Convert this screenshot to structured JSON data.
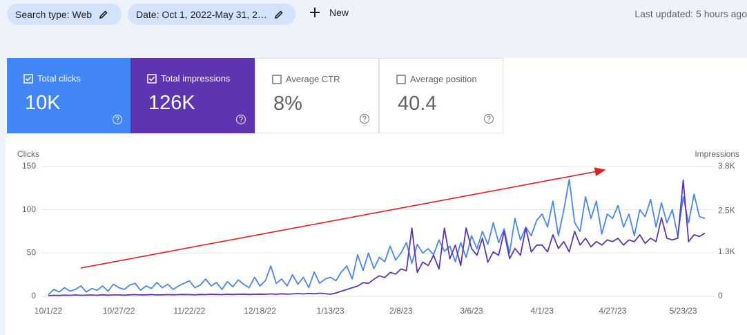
{
  "toolbar": {
    "search_type": "Search type: Web",
    "date": "Date: Oct 1, 2022-May 31, 2…",
    "new": "New",
    "last_updated": "Last updated: 5 hours ago"
  },
  "cards": [
    {
      "label": "Total clicks",
      "value": "10K"
    },
    {
      "label": "Total impressions",
      "value": "126K"
    },
    {
      "label": "Average CTR",
      "value": "8%"
    },
    {
      "label": "Average position",
      "value": "40.4"
    }
  ],
  "chart_data": {
    "type": "line",
    "y_label": "Clicks",
    "y2_label": "Impressions",
    "categories": [
      "10/1/22",
      null,
      null,
      null,
      null,
      null,
      null,
      null,
      null,
      null,
      null,
      null,
      null,
      "10/27/22",
      null,
      null,
      null,
      null,
      null,
      null,
      null,
      null,
      null,
      null,
      null,
      null,
      "11/22/22",
      null,
      null,
      null,
      null,
      null,
      null,
      null,
      null,
      null,
      null,
      null,
      null,
      "12/18/22",
      null,
      null,
      null,
      null,
      null,
      null,
      null,
      null,
      null,
      null,
      null,
      null,
      "1/13/23",
      null,
      null,
      null,
      null,
      null,
      null,
      null,
      null,
      null,
      null,
      null,
      null,
      "2/8/23",
      null,
      null,
      null,
      null,
      null,
      null,
      null,
      null,
      null,
      null,
      null,
      null,
      "3/6/23",
      null,
      null,
      null,
      null,
      null,
      null,
      null,
      null,
      null,
      null,
      null,
      null,
      "4/1/23",
      null,
      null,
      null,
      null,
      null,
      null,
      null,
      null,
      null,
      null,
      null,
      null,
      "4/27/23",
      null,
      null,
      null,
      null,
      null,
      null,
      null,
      null,
      null,
      null,
      null,
      null,
      "5/23/23",
      null,
      null,
      null,
      null
    ],
    "series": [
      {
        "color": "#4a86e8",
        "values": [
          2,
          8,
          5,
          10,
          6,
          8,
          12,
          5,
          9,
          7,
          12,
          6,
          14,
          10,
          8,
          13,
          15,
          7,
          12,
          9,
          16,
          10,
          14,
          8,
          12,
          15,
          18,
          10,
          13,
          20,
          12,
          16,
          8,
          17,
          11,
          19,
          14,
          10,
          22,
          12,
          18,
          35,
          15,
          20,
          12,
          25,
          14,
          22,
          10,
          28,
          15,
          20,
          22,
          18,
          28,
          35,
          20,
          48,
          30,
          50,
          32,
          45,
          40,
          58,
          42,
          50,
          62,
          38,
          60,
          50,
          55,
          48,
          65,
          52,
          58,
          40,
          62,
          45,
          70,
          55,
          75,
          60,
          85,
          62,
          78,
          50,
          90,
          65,
          80,
          70,
          88,
          95,
          80,
          110,
          70,
          100,
          135,
          85,
          75,
          115,
          90,
          110,
          72,
          95,
          90,
          105,
          80,
          95,
          70,
          100,
          92,
          112,
          80,
          108,
          85,
          100,
          70,
          115,
          85,
          118,
          92,
          90
        ]
      },
      {
        "color": "#5e35b1",
        "axis": "y2",
        "values": [
          20,
          30,
          25,
          35,
          30,
          40,
          30,
          35,
          40,
          30,
          45,
          35,
          40,
          40,
          35,
          45,
          50,
          40,
          45,
          50,
          40,
          45,
          50,
          45,
          50,
          55,
          50,
          45,
          55,
          50,
          60,
          55,
          50,
          60,
          55,
          60,
          65,
          55,
          60,
          65,
          60,
          70,
          60,
          75,
          65,
          70,
          80,
          70,
          85,
          75,
          90,
          80,
          60,
          100,
          150,
          200,
          250,
          300,
          400,
          380,
          500,
          600,
          550,
          700,
          650,
          800,
          750,
          2000,
          700,
          1000,
          900,
          1200,
          800,
          2000,
          1100,
          1500,
          900,
          2000,
          1400,
          1200,
          1700,
          1000,
          1300,
          1200,
          1900,
          1100,
          1400,
          1200,
          2000,
          1300,
          1500,
          1500,
          1300,
          1800,
          1400,
          1600,
          1300,
          1900,
          1500,
          1700,
          1450,
          1600,
          1500,
          1650,
          1600,
          1700,
          1500,
          1650,
          1600,
          1800,
          1550,
          1700,
          1600,
          2300,
          1700,
          1650,
          1700,
          3400,
          1600,
          1800,
          1750,
          1850
        ]
      }
    ],
    "ylim": [
      0,
      150
    ],
    "yticks": [
      0,
      50,
      100,
      150
    ],
    "y2lim": [
      0,
      3800
    ],
    "y2ticks": [
      0,
      {
        "value": 1300,
        "label": "1.3K"
      },
      {
        "value": 2500,
        "label": "2.5K"
      },
      {
        "value": 3800,
        "label": "3.8K"
      }
    ],
    "grid": true
  }
}
